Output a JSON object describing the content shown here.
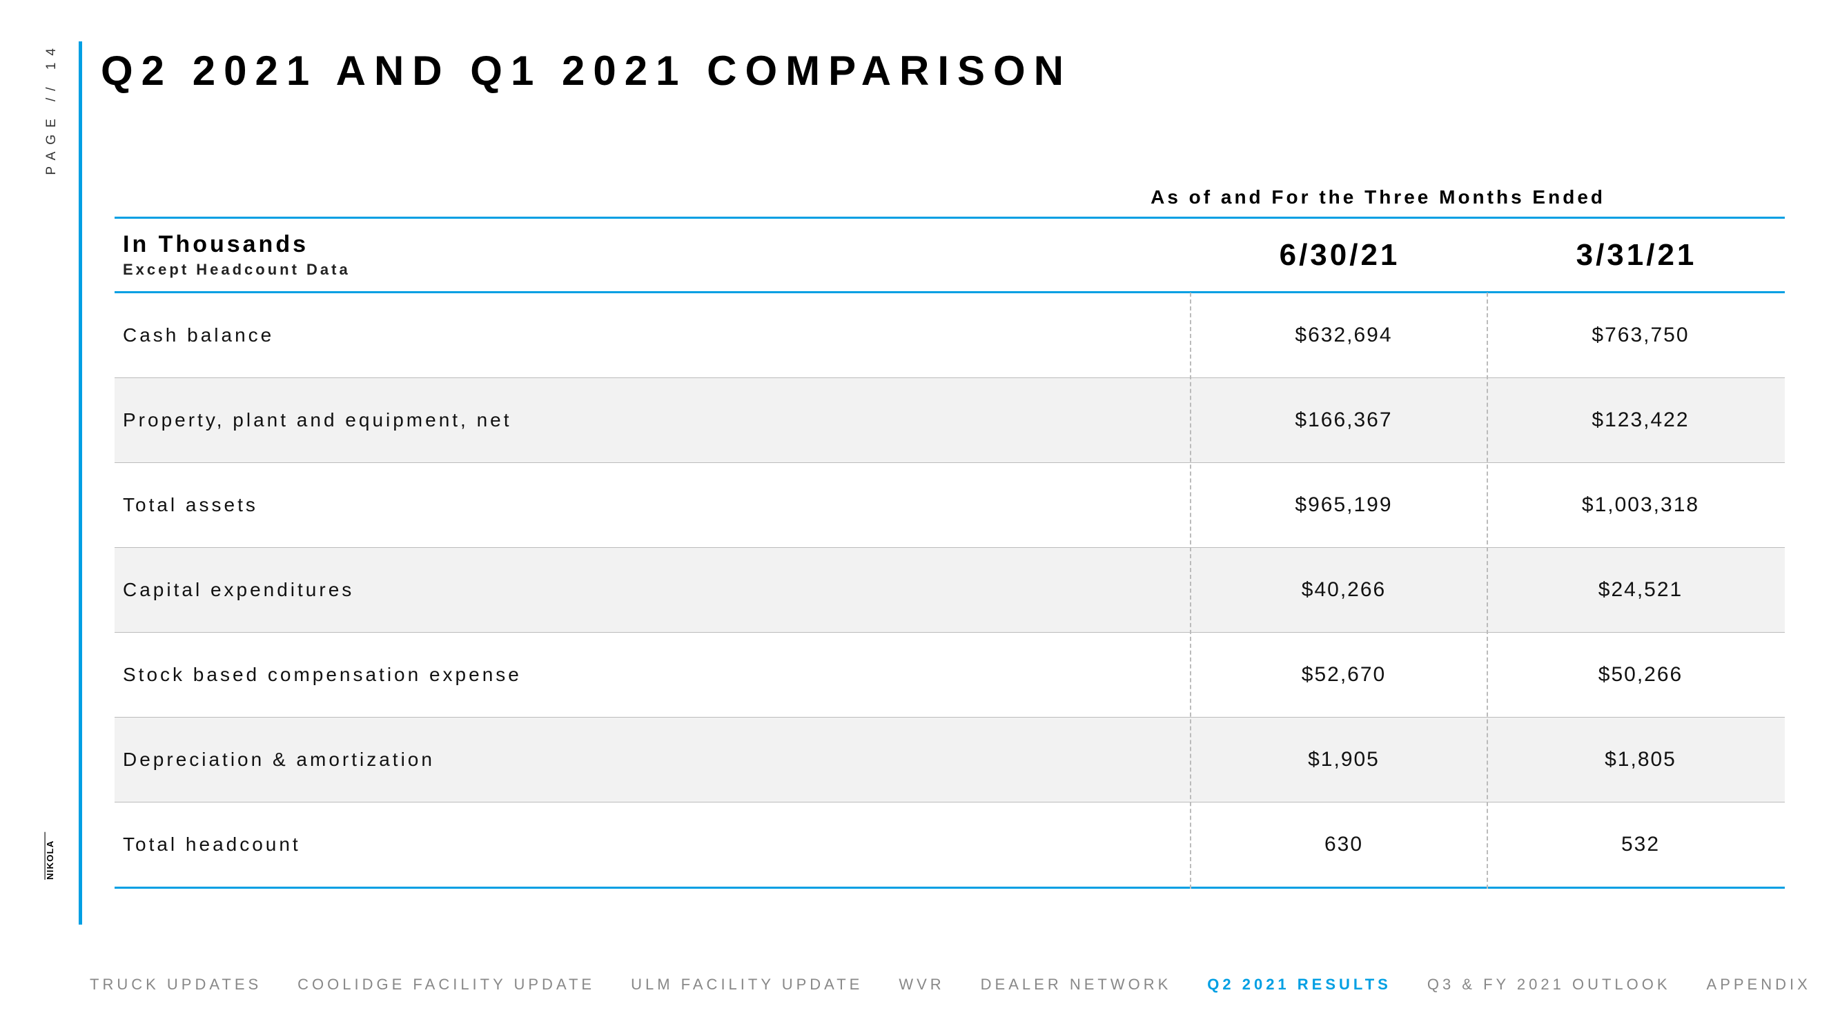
{
  "page_label": "PAGE // 14",
  "title": "Q2 2021 AND Q1 2021 COMPARISON",
  "logo_text": "NIKOLA",
  "colors": {
    "accent": "#009fe3",
    "shade": "#f2f2f2",
    "divider": "#bbbbbb",
    "text": "#000000",
    "footer_muted": "#888888"
  },
  "table": {
    "super_header": "As of and For the Three Months Ended",
    "header": {
      "left_title": "In Thousands",
      "left_sub": "Except Headcount Data",
      "dates": [
        "6/30/21",
        "3/31/21"
      ]
    },
    "rows": [
      {
        "label": "Cash balance",
        "v1": "$632,694",
        "v2": "$763,750",
        "shade": false
      },
      {
        "label": "Property, plant and equipment, net",
        "v1": "$166,367",
        "v2": "$123,422",
        "shade": true
      },
      {
        "label": "Total assets",
        "v1": "$965,199",
        "v2": "$1,003,318",
        "shade": false
      },
      {
        "label": "Capital expenditures",
        "v1": "$40,266",
        "v2": "$24,521",
        "shade": true
      },
      {
        "label": "Stock based compensation expense",
        "v1": "$52,670",
        "v2": "$50,266",
        "shade": false
      },
      {
        "label": "Depreciation & amortization",
        "v1": "$1,905",
        "v2": "$1,805",
        "shade": true
      },
      {
        "label": "Total headcount",
        "v1": "630",
        "v2": "532",
        "shade": false
      }
    ]
  },
  "footer": [
    {
      "label": "TRUCK UPDATES",
      "active": false
    },
    {
      "label": "COOLIDGE FACILITY UPDATE",
      "active": false
    },
    {
      "label": "ULM FACILITY UPDATE",
      "active": false
    },
    {
      "label": "WVR",
      "active": false
    },
    {
      "label": "DEALER NETWORK",
      "active": false
    },
    {
      "label": "Q2 2021 RESULTS",
      "active": true
    },
    {
      "label": "Q3 & FY 2021 OUTLOOK",
      "active": false
    },
    {
      "label": "APPENDIX",
      "active": false
    }
  ]
}
